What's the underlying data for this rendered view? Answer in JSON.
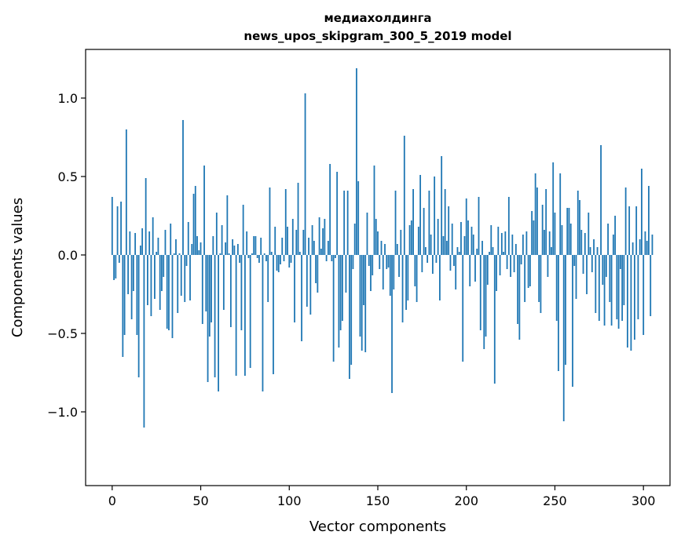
{
  "chart_data": {
    "type": "bar",
    "title_line1": "медиахолдинга",
    "title_line2": "news_upos_skipgram_300_5_2019 model",
    "xlabel": "Vector components",
    "ylabel": "Components values",
    "xlim": [
      -15,
      315
    ],
    "ylim": [
      -1.47,
      1.31
    ],
    "xticks": [
      0,
      50,
      100,
      150,
      200,
      250,
      300
    ],
    "xtick_labels": [
      "0",
      "50",
      "100",
      "150",
      "200",
      "250",
      "300"
    ],
    "yticks": [
      -1.0,
      -0.5,
      0.0,
      0.5,
      1.0
    ],
    "ytick_labels": [
      "−1.0",
      "−0.5",
      "0.0",
      "0.5",
      "1.0"
    ],
    "bar_color": "#1f77b4",
    "grid": false,
    "values": [
      0.37,
      -0.16,
      -0.15,
      0.31,
      -0.05,
      0.34,
      -0.65,
      -0.51,
      0.8,
      -0.25,
      0.15,
      -0.41,
      -0.23,
      0.14,
      -0.51,
      -0.78,
      0.06,
      0.17,
      -1.1,
      0.49,
      -0.32,
      0.15,
      -0.39,
      0.24,
      -0.28,
      0.02,
      0.11,
      -0.35,
      -0.23,
      -0.14,
      0.16,
      -0.47,
      -0.48,
      0.2,
      -0.53,
      0.01,
      0.1,
      -0.37,
      0.01,
      -0.26,
      0.86,
      -0.3,
      -0.07,
      0.21,
      -0.29,
      0.07,
      0.39,
      0.44,
      0.12,
      0.03,
      0.08,
      -0.44,
      0.57,
      -0.36,
      -0.81,
      -0.52,
      -0.43,
      0.12,
      -0.78,
      0.27,
      -0.87,
      0.01,
      0.19,
      -0.35,
      0.08,
      0.38,
      0.01,
      -0.46,
      0.1,
      0.06,
      -0.77,
      0.07,
      -0.05,
      -0.48,
      0.32,
      -0.77,
      0.15,
      -0.02,
      -0.72,
      0.01,
      0.12,
      0.12,
      -0.02,
      -0.05,
      0.11,
      -0.87,
      0.01,
      -0.04,
      -0.3,
      0.43,
      0.02,
      -0.76,
      0.18,
      -0.1,
      -0.11,
      -0.06,
      0.11,
      -0.04,
      0.42,
      0.18,
      -0.08,
      -0.05,
      0.23,
      -0.43,
      0.16,
      0.46,
      0.02,
      -0.55,
      0.16,
      1.03,
      -0.33,
      0.11,
      -0.38,
      0.19,
      0.09,
      -0.18,
      -0.24,
      0.24,
      0.04,
      0.17,
      0.23,
      -0.04,
      0.09,
      0.58,
      -0.04,
      -0.68,
      -0.02,
      0.53,
      -0.59,
      -0.48,
      -0.42,
      0.41,
      -0.24,
      0.41,
      -0.79,
      -0.7,
      -0.09,
      0.2,
      1.19,
      0.47,
      -0.52,
      -0.61,
      -0.32,
      -0.62,
      0.27,
      -0.07,
      -0.23,
      -0.13,
      0.57,
      0.23,
      0.15,
      -0.09,
      0.09,
      -0.22,
      0.07,
      -0.09,
      -0.08,
      -0.26,
      -0.88,
      -0.22,
      0.41,
      0.07,
      -0.14,
      0.16,
      -0.43,
      0.76,
      -0.35,
      -0.29,
      0.19,
      0.22,
      0.42,
      -0.2,
      -0.3,
      0.18,
      0.51,
      -0.11,
      0.3,
      0.05,
      -0.05,
      0.41,
      0.13,
      -0.12,
      0.5,
      -0.05,
      0.23,
      -0.29,
      0.63,
      0.12,
      0.42,
      0.09,
      0.31,
      -0.1,
      0.2,
      -0.07,
      -0.22,
      0.05,
      0.02,
      0.21,
      -0.68,
      0.12,
      0.36,
      0.22,
      -0.2,
      0.18,
      0.13,
      -0.17,
      0.04,
      0.37,
      -0.48,
      0.09,
      -0.6,
      -0.52,
      -0.19,
      0.02,
      0.19,
      0.05,
      -0.82,
      -0.23,
      0.18,
      -0.13,
      0.14,
      0.02,
      0.15,
      -0.09,
      0.37,
      -0.14,
      0.13,
      -0.11,
      0.07,
      -0.44,
      -0.54,
      -0.06,
      0.13,
      -0.3,
      0.15,
      -0.21,
      -0.2,
      0.28,
      0.22,
      0.52,
      0.43,
      -0.3,
      -0.37,
      0.32,
      0.16,
      0.42,
      -0.14,
      0.15,
      0.05,
      0.59,
      0.27,
      -0.42,
      -0.74,
      0.52,
      0.19,
      -1.06,
      -0.7,
      0.3,
      0.3,
      0.2,
      -0.84,
      -0.07,
      -0.28,
      0.41,
      0.35,
      0.16,
      -0.12,
      0.14,
      -0.25,
      0.27,
      0.05,
      -0.11,
      0.1,
      -0.37,
      0.05,
      -0.42,
      0.7,
      -0.19,
      -0.45,
      -0.14,
      0.2,
      -0.3,
      -0.45,
      0.13,
      0.25,
      -0.41,
      -0.47,
      -0.09,
      -0.42,
      -0.32,
      0.43,
      -0.59,
      0.31,
      -0.61,
      0.08,
      -0.54,
      0.31,
      -0.41,
      0.1,
      0.55,
      -0.51,
      0.15,
      0.09,
      0.44,
      -0.39,
      0.13
    ]
  }
}
